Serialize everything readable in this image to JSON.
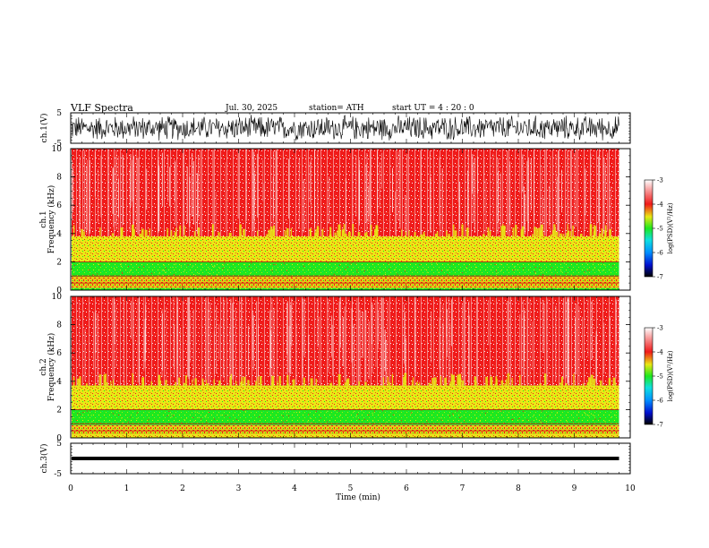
{
  "header": {
    "title": "VLF  Spectra",
    "date": "Jul.  30,  2025",
    "station": "station= ATH",
    "start_time": "start  UT  =   4  : 20 : 0"
  },
  "chart_data": {
    "type": "heatmap",
    "xlabel": "Time  (min)",
    "xlim": [
      0,
      10
    ],
    "x_ticks": [
      "0",
      "1",
      "2",
      "3",
      "4",
      "5",
      "6",
      "7",
      "8",
      "9",
      "10"
    ],
    "data_end_min": 9.8,
    "panels": [
      {
        "id": "ch1-waveform",
        "type": "line",
        "ylabel": "ch.1(V)",
        "ylim": [
          -5,
          5
        ],
        "y_ticks": [
          "5",
          "-5"
        ],
        "amplitude_range": [
          -4.5,
          4.5
        ]
      },
      {
        "id": "ch1-spectrogram",
        "type": "heatmap",
        "ylabel": "ch.1",
        "ylabel2": "Frequency  (kHz)",
        "ylim": [
          0,
          10
        ],
        "y_ticks": [
          "0",
          "2",
          "4",
          "6",
          "8",
          "10"
        ],
        "bands_khz": [
          {
            "from": 0.0,
            "to": 0.15,
            "level": "green"
          },
          {
            "from": 0.15,
            "to": 0.95,
            "level": "yellow-red"
          },
          {
            "from": 0.95,
            "to": 2.0,
            "level": "green"
          },
          {
            "from": 2.0,
            "to": 3.8,
            "level": "yellow"
          },
          {
            "from": 3.8,
            "to": 10.0,
            "level": "red"
          }
        ]
      },
      {
        "id": "ch2-spectrogram",
        "type": "heatmap",
        "ylabel": "ch.2",
        "ylabel2": "Frequency  (kHz)",
        "ylim": [
          0,
          10
        ],
        "y_ticks": [
          "0",
          "2",
          "4",
          "6",
          "8",
          "10"
        ],
        "bands_khz": [
          {
            "from": 0.0,
            "to": 0.25,
            "level": "yellow"
          },
          {
            "from": 0.25,
            "to": 0.9,
            "level": "yellow-red"
          },
          {
            "from": 0.9,
            "to": 2.0,
            "level": "green"
          },
          {
            "from": 2.0,
            "to": 3.7,
            "level": "yellow"
          },
          {
            "from": 3.7,
            "to": 10.0,
            "level": "red"
          }
        ]
      },
      {
        "id": "ch3-waveform",
        "type": "line",
        "ylabel": "ch.3(V)",
        "ylim": [
          -5,
          5
        ],
        "y_ticks": [
          "5",
          "-5"
        ],
        "level": 0
      }
    ],
    "colorbar": {
      "label": "log(PSD)(V²/Hz)",
      "ticks": [
        "-3",
        "-4",
        "-5",
        "-6",
        "-7"
      ],
      "range": [
        -7,
        -3
      ]
    }
  },
  "colors": {
    "red": "#f01a1a",
    "yellow": "#e8e815",
    "green": "#1ee81e",
    "pale_red": "#f8d0d0"
  }
}
